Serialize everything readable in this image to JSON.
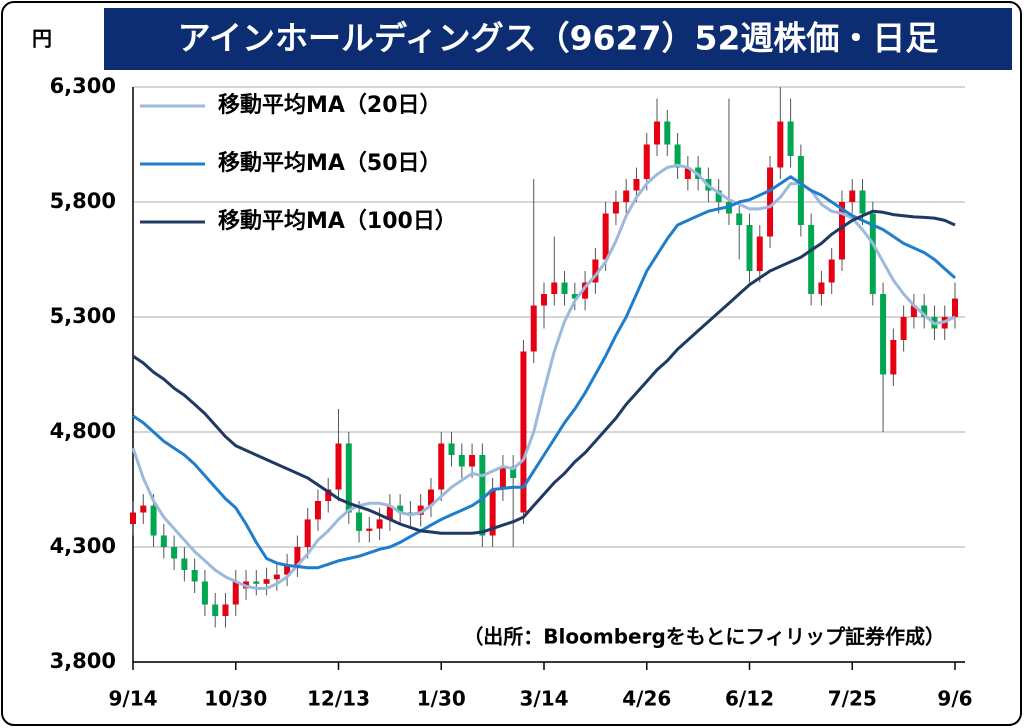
{
  "chart_data": {
    "type": "candlestick",
    "title": "アインホールディングス（9627）52週株価・日足",
    "y_unit": "円",
    "source": "（出所：Bloombergをもとにフィリップ証券作成）",
    "categories": [
      "9/14",
      null,
      null,
      null,
      null,
      null,
      null,
      null,
      null,
      null,
      "10/30",
      null,
      null,
      null,
      null,
      null,
      null,
      null,
      null,
      null,
      "12/13",
      null,
      null,
      null,
      null,
      null,
      null,
      null,
      null,
      null,
      "1/30",
      null,
      null,
      null,
      null,
      null,
      null,
      null,
      null,
      null,
      "3/14",
      null,
      null,
      null,
      null,
      null,
      null,
      null,
      null,
      null,
      "4/26",
      null,
      null,
      null,
      null,
      null,
      null,
      null,
      null,
      null,
      "6/12",
      null,
      null,
      null,
      null,
      null,
      null,
      null,
      null,
      null,
      "7/25",
      null,
      null,
      null,
      null,
      null,
      null,
      null,
      null,
      null,
      "9/6"
    ],
    "open": [
      4400,
      4450,
      4480,
      4350,
      4300,
      4250,
      4200,
      4150,
      4050,
      4000,
      4050,
      4120,
      4150,
      4140,
      4160,
      4180,
      4220,
      4300,
      4420,
      4500,
      4550,
      4750,
      4450,
      4370,
      4380,
      4420,
      4480,
      4450,
      4440,
      4480,
      4550,
      4750,
      4700,
      4650,
      4700,
      4350,
      4550,
      4650,
      4450,
      5150,
      5350,
      5400,
      5450,
      5400,
      5380,
      5450,
      5550,
      5750,
      5800,
      5850,
      5900,
      6050,
      6150,
      6050,
      5900,
      5950,
      5900,
      5850,
      5800,
      5750,
      5700,
      5500,
      5650,
      5950,
      6150,
      6000,
      5700,
      5400,
      5450,
      5550,
      5800,
      5850,
      5750,
      5400,
      5050,
      5200,
      5300,
      5350,
      5300,
      5250,
      5300
    ],
    "high": [
      4500,
      4530,
      4530,
      4400,
      4350,
      4300,
      4250,
      4200,
      4100,
      4100,
      4200,
      4200,
      4200,
      4210,
      4230,
      4270,
      4350,
      4470,
      4550,
      4600,
      4900,
      4800,
      4500,
      4430,
      4470,
      4530,
      4530,
      4500,
      4530,
      4600,
      4800,
      4800,
      4750,
      4750,
      4750,
      4600,
      4700,
      4700,
      5200,
      5900,
      5450,
      5650,
      5500,
      5450,
      5500,
      5600,
      5800,
      5850,
      5900,
      5950,
      6100,
      6250,
      6200,
      6100,
      6000,
      6000,
      5950,
      5900,
      6250,
      5800,
      5750,
      5700,
      6000,
      6300,
      6250,
      6050,
      5750,
      5500,
      5600,
      5850,
      5900,
      5900,
      5800,
      5450,
      5250,
      5350,
      5400,
      5400,
      5350,
      5350,
      5450
    ],
    "low": [
      4350,
      4400,
      4300,
      4250,
      4200,
      4150,
      4100,
      4000,
      3950,
      3950,
      4000,
      4070,
      4090,
      4090,
      4110,
      4130,
      4170,
      4250,
      4370,
      4450,
      4500,
      4400,
      4320,
      4320,
      4330,
      4370,
      4400,
      4390,
      4390,
      4430,
      4500,
      4650,
      4600,
      4600,
      4300,
      4300,
      4500,
      4300,
      4400,
      5100,
      5250,
      5350,
      5350,
      5330,
      5330,
      5400,
      5500,
      5700,
      5750,
      5800,
      5850,
      6000,
      6000,
      5900,
      5850,
      5850,
      5800,
      5750,
      5700,
      5550,
      5450,
      5450,
      5600,
      5900,
      5950,
      5650,
      5350,
      5350,
      5400,
      5500,
      5750,
      5700,
      5350,
      4800,
      5000,
      5150,
      5250,
      5250,
      5200,
      5200,
      5250
    ],
    "close": [
      4450,
      4480,
      4350,
      4300,
      4250,
      4200,
      4150,
      4050,
      4000,
      4050,
      4150,
      4150,
      4140,
      4160,
      4180,
      4220,
      4300,
      4420,
      4500,
      4550,
      4750,
      4450,
      4370,
      4380,
      4420,
      4480,
      4450,
      4440,
      4480,
      4550,
      4750,
      4700,
      4650,
      4700,
      4350,
      4550,
      4650,
      4600,
      5150,
      5350,
      5400,
      5450,
      5400,
      5380,
      5450,
      5550,
      5750,
      5800,
      5850,
      5900,
      6050,
      6150,
      6050,
      5950,
      5950,
      5900,
      5850,
      5800,
      5750,
      5700,
      5500,
      5650,
      5950,
      6150,
      6000,
      5700,
      5400,
      5450,
      5550,
      5800,
      5850,
      5750,
      5400,
      5050,
      5200,
      5300,
      5350,
      5300,
      5250,
      5300,
      5380
    ],
    "up_color": "#e60012",
    "down_color": "#00a651",
    "series": [
      {
        "name": "移動平均MA（20日）",
        "color": "#9db9dc",
        "values": [
          4730,
          4600,
          4500,
          4430,
          4380,
          4330,
          4280,
          4240,
          4200,
          4170,
          4150,
          4130,
          4120,
          4120,
          4140,
          4170,
          4220,
          4270,
          4330,
          4370,
          4420,
          4460,
          4480,
          4490,
          4490,
          4480,
          4450,
          4440,
          4450,
          4480,
          4520,
          4560,
          4590,
          4620,
          4610,
          4630,
          4650,
          4640,
          4680,
          4800,
          4980,
          5150,
          5280,
          5370,
          5430,
          5480,
          5540,
          5630,
          5740,
          5820,
          5880,
          5920,
          5950,
          5960,
          5950,
          5920,
          5870,
          5840,
          5810,
          5790,
          5770,
          5770,
          5780,
          5820,
          5880,
          5880,
          5850,
          5790,
          5760,
          5750,
          5730,
          5680,
          5620,
          5540,
          5460,
          5400,
          5350,
          5310,
          5270,
          5280,
          5300
        ]
      },
      {
        "name": "移動平均MA（50日）",
        "color": "#1f7ecb",
        "values": [
          4870,
          4840,
          4800,
          4760,
          4730,
          4700,
          4660,
          4610,
          4560,
          4510,
          4470,
          4400,
          4320,
          4250,
          4230,
          4220,
          4215,
          4210,
          4210,
          4225,
          4240,
          4250,
          4260,
          4275,
          4290,
          4300,
          4320,
          4345,
          4370,
          4395,
          4420,
          4440,
          4460,
          4480,
          4510,
          4550,
          4555,
          4560,
          4560,
          4630,
          4700,
          4770,
          4840,
          4900,
          4970,
          5050,
          5130,
          5220,
          5300,
          5400,
          5500,
          5570,
          5640,
          5700,
          5720,
          5740,
          5760,
          5770,
          5780,
          5800,
          5810,
          5830,
          5850,
          5880,
          5910,
          5880,
          5850,
          5830,
          5800,
          5770,
          5740,
          5720,
          5700,
          5680,
          5650,
          5620,
          5600,
          5580,
          5550,
          5510,
          5470
        ]
      },
      {
        "name": "移動平均MA（100日）",
        "color": "#1f3864",
        "values": [
          5130,
          5100,
          5060,
          5030,
          4990,
          4960,
          4920,
          4880,
          4830,
          4780,
          4740,
          4720,
          4700,
          4680,
          4660,
          4640,
          4620,
          4600,
          4570,
          4540,
          4510,
          4490,
          4475,
          4460,
          4440,
          4420,
          4400,
          4385,
          4370,
          4365,
          4360,
          4360,
          4360,
          4360,
          4365,
          4380,
          4395,
          4410,
          4430,
          4480,
          4530,
          4580,
          4620,
          4670,
          4710,
          4760,
          4810,
          4860,
          4920,
          4970,
          5020,
          5070,
          5110,
          5160,
          5200,
          5240,
          5280,
          5320,
          5360,
          5400,
          5440,
          5470,
          5500,
          5520,
          5540,
          5560,
          5590,
          5620,
          5660,
          5690,
          5720,
          5740,
          5760,
          5755,
          5745,
          5740,
          5735,
          5733,
          5730,
          5720,
          5700
        ]
      }
    ],
    "ylim": [
      3800,
      6300
    ],
    "yticks": [
      {
        "value": 3800,
        "label": "3,800"
      },
      {
        "value": 4300,
        "label": "4,300"
      },
      {
        "value": 4800,
        "label": "4,800"
      },
      {
        "value": 5300,
        "label": "5,300"
      },
      {
        "value": 5800,
        "label": "5,800"
      },
      {
        "value": 6300,
        "label": "6,300"
      }
    ],
    "grid": true,
    "legend": "upper left"
  }
}
